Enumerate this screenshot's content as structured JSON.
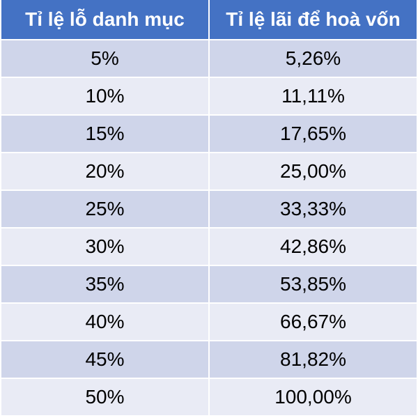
{
  "table": {
    "headers": [
      "Tỉ lệ lỗ danh mục",
      "Tỉ lệ lãi để hoà vốn"
    ],
    "rows": [
      [
        "5%",
        "5,26%"
      ],
      [
        "10%",
        "11,11%"
      ],
      [
        "15%",
        "17,65%"
      ],
      [
        "20%",
        "25,00%"
      ],
      [
        "25%",
        "33,33%"
      ],
      [
        "30%",
        "42,86%"
      ],
      [
        "35%",
        "53,85%"
      ],
      [
        "40%",
        "66,67%"
      ],
      [
        "45%",
        "81,82%"
      ],
      [
        "50%",
        "100,00%"
      ]
    ]
  },
  "colors": {
    "header_bg": "#4472c4",
    "row_dark": "#cfd5ea",
    "row_light": "#e9ebf5",
    "header_text": "#ffffff"
  }
}
